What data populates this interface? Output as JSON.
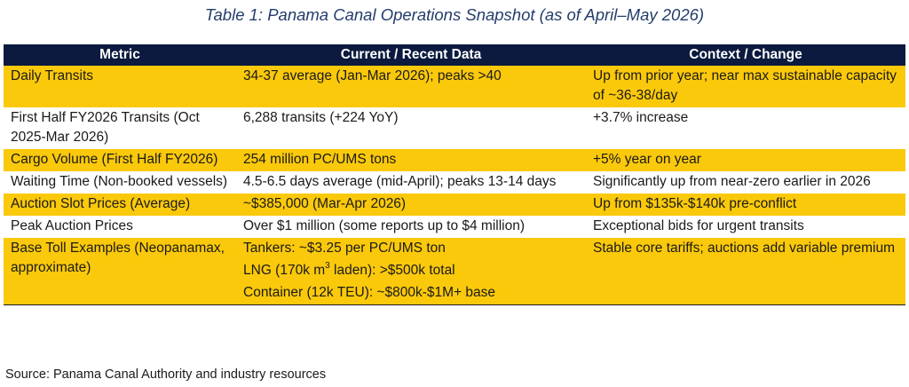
{
  "caption": "Table 1: Panama Canal Operations Snapshot (as of April–May 2026)",
  "headers": [
    "Metric",
    "Current / Recent Data",
    "Context / Change"
  ],
  "rows": [
    [
      "Daily Transits",
      "34-37 average (Jan-Mar 2026); peaks >40",
      "Up from prior year; near max sustainable capacity of ~36-38/day"
    ],
    [
      "First Half FY2026 Transits (Oct 2025-Mar 2026)",
      "6,288 transits (+224 YoY)",
      "+3.7% increase"
    ],
    [
      "Cargo Volume (First Half FY2026)",
      "254 million PC/UMS tons",
      "+5% year on year"
    ],
    [
      "Waiting Time (Non-booked vessels)",
      "4.5-6.5 days average (mid-April); peaks 13-14 days",
      "Significantly up from near-zero earlier in 2026"
    ],
    [
      "Auction Slot Prices (Average)",
      "~$385,000 (Mar-Apr 2026)",
      "Up from $135k-$140k pre-conflict"
    ],
    [
      "Peak Auction Prices",
      "Over $1 million (some reports up to $4 million)",
      "Exceptional bids for urgent transits"
    ]
  ],
  "toll_row": {
    "metric": "Base Toll Examples (Neopanamax, approximate)",
    "lines": {
      "tankers": "Tankers: ~$3.25 per PC/UMS ton",
      "lng_prefix": "LNG (170k m",
      "lng_sup": "3",
      "lng_suffix": " laden): >$500k total",
      "container": "Container (12k TEU): ~$800k-$1M+ base"
    },
    "context": "Stable core tariffs; auctions add variable premium"
  },
  "source": "Source: Panama Canal Authority and industry resources",
  "colors": {
    "header_bg": "#0b1a3e",
    "accent_row": "#fbc90b",
    "caption": "#243c6c"
  }
}
